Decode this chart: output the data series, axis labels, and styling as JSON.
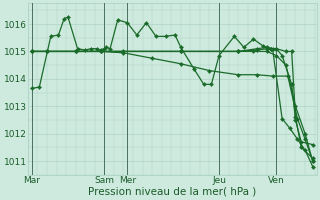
{
  "background_color": "#ceeade",
  "grid_color": "#a8cfc0",
  "line_color": "#1a6b2a",
  "xlabel": "Pression niveau de la mer( hPa )",
  "ylim": [
    1010.5,
    1016.75
  ],
  "yticks": [
    1011,
    1012,
    1013,
    1014,
    1015,
    1016
  ],
  "xlabel_fontsize": 7.5,
  "tick_fontsize": 6.5,
  "figsize": [
    3.2,
    2.0
  ],
  "dpi": 100,
  "s1_x": [
    2,
    6,
    12,
    16,
    19,
    21,
    26,
    30,
    33,
    36,
    38,
    40,
    41,
    43,
    47,
    52,
    57,
    62,
    67,
    72,
    77,
    80,
    87,
    92,
    96,
    100,
    108,
    113,
    118,
    123,
    128,
    133,
    137,
    141,
    145,
    149
  ],
  "s1_y": [
    1013.65,
    1013.7,
    1015.55,
    1015.6,
    1016.2,
    1016.25,
    1015.1,
    1015.05,
    1015.1,
    1015.1,
    1015.05,
    1015.1,
    1015.15,
    1015.1,
    1016.15,
    1016.05,
    1015.6,
    1016.05,
    1015.55,
    1015.55,
    1015.6,
    1015.15,
    1014.35,
    1013.8,
    1013.8,
    1014.85,
    1015.55,
    1015.15,
    1015.45,
    1015.2,
    1015.1,
    1012.55,
    1012.2,
    1011.8,
    1011.4,
    1010.8
  ],
  "s2_x": [
    2,
    10,
    25,
    38,
    50,
    65,
    80,
    95,
    110,
    120,
    128,
    136,
    141,
    145,
    149
  ],
  "s2_y": [
    1015.0,
    1015.0,
    1015.0,
    1015.0,
    1014.95,
    1014.75,
    1014.55,
    1014.3,
    1014.15,
    1014.15,
    1014.1,
    1014.1,
    1012.55,
    1011.8,
    1011.0
  ],
  "s3_x": [
    2,
    10,
    25,
    38,
    50,
    80,
    110,
    118,
    125,
    130,
    135,
    140,
    145,
    149
  ],
  "s3_y": [
    1015.0,
    1015.0,
    1015.0,
    1015.0,
    1015.0,
    1015.0,
    1015.0,
    1015.0,
    1015.0,
    1014.85,
    1014.5,
    1013.0,
    1012.0,
    1011.0
  ],
  "s4_x": [
    2,
    10,
    25,
    38,
    80,
    110,
    120,
    125,
    127,
    130,
    135,
    138,
    140,
    143,
    149
  ],
  "s4_y": [
    1015.0,
    1015.0,
    1015.0,
    1015.0,
    1015.0,
    1015.0,
    1015.1,
    1015.15,
    1015.1,
    1015.1,
    1015.0,
    1015.0,
    1012.6,
    1011.5,
    1011.1
  ],
  "s5_x": [
    2,
    10,
    25,
    38,
    80,
    110,
    120,
    125,
    127,
    130,
    133,
    138,
    140,
    143,
    149
  ],
  "s5_y": [
    1015.0,
    1015.0,
    1015.0,
    1015.0,
    1015.0,
    1015.0,
    1015.05,
    1015.1,
    1015.1,
    1015.1,
    1014.85,
    1013.8,
    1012.5,
    1011.7,
    1011.6
  ],
  "day_vlines": [
    2,
    40,
    52,
    100,
    130
  ],
  "xtick_pos": [
    2,
    40,
    52,
    100,
    130
  ],
  "xtick_lab": [
    "Mar",
    "Sam",
    "Mer",
    "Jeu",
    "Ven"
  ]
}
